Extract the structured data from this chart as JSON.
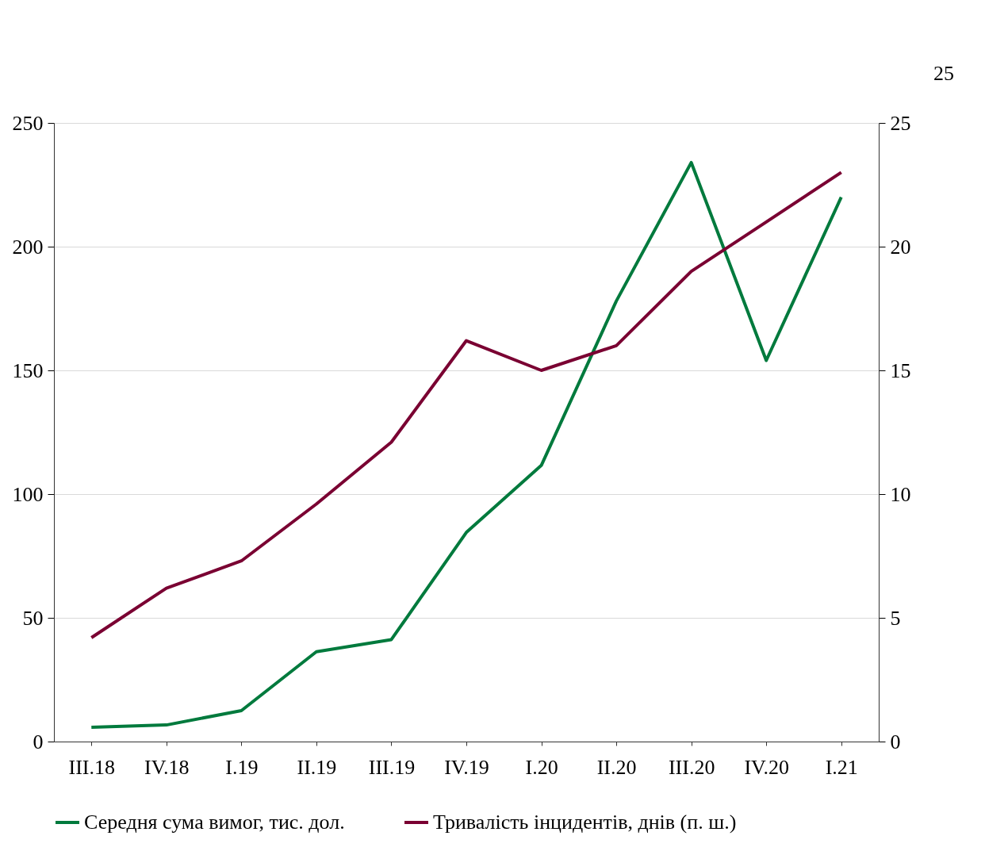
{
  "chart_data": {
    "type": "line",
    "categories": [
      "III.18",
      "IV.18",
      "I.19",
      "II.19",
      "III.19",
      "IV.19",
      "I.20",
      "II.20",
      "III.20",
      "IV.20",
      "I.21"
    ],
    "series": [
      {
        "name": "Середня сума вимог, тис.  дол.",
        "color": "#007a3d",
        "values": [
          5.8,
          6.7,
          12.5,
          36.3,
          41.2,
          84.5,
          111.6,
          178,
          234,
          154,
          220
        ]
      },
      {
        "name": "Тривалість інцидентів, днів (п. ш.)",
        "color": "#7a0032",
        "axis": "y2",
        "values": [
          4.2,
          6.2,
          7.3,
          9.6,
          12.1,
          16.2,
          15.0,
          16.0,
          19.0,
          21.0,
          23.0
        ]
      }
    ],
    "ylim": [
      0,
      250
    ],
    "yticks": [
      0,
      50,
      100,
      150,
      200,
      250
    ],
    "y2lim": [
      0,
      25
    ],
    "y2ticks": [
      0,
      5,
      10,
      15,
      20,
      25
    ],
    "grid": "y",
    "legend": "bottom",
    "marker": "none",
    "line_style": "solid",
    "annotations": [
      "25"
    ]
  }
}
